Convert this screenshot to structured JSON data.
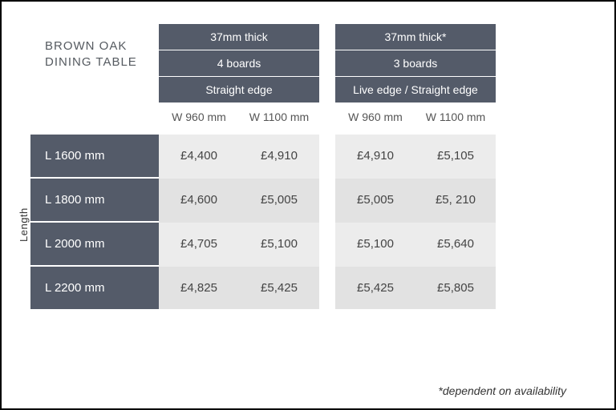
{
  "title_line1": "BROWN OAK",
  "title_line2": "DINING TABLE",
  "length_axis_label": "Length",
  "footnote": "*dependent on availability",
  "groups": [
    {
      "thickness": "37mm thick",
      "boards": "4 boards",
      "edge": "Straight edge",
      "widths": [
        "W 960 mm",
        "W 1100 mm"
      ]
    },
    {
      "thickness": "37mm thick*",
      "boards": "3 boards",
      "edge": "Live edge / Straight edge",
      "widths": [
        "W 960 mm",
        "W 1100 mm"
      ]
    }
  ],
  "rows": [
    {
      "length": "L 1600 mm",
      "prices": [
        "£4,400",
        "£4,910",
        "£4,910",
        "£5,105"
      ]
    },
    {
      "length": "L 1800 mm",
      "prices": [
        "£4,600",
        "£5,005",
        "£5,005",
        "£5, 210"
      ]
    },
    {
      "length": "L 2000 mm",
      "prices": [
        "£4,705",
        "£5,100",
        "£5,100",
        "£5,640"
      ]
    },
    {
      "length": "L 2200 mm",
      "prices": [
        "£4,825",
        "£5,425",
        "£5,425",
        "£5,805"
      ]
    }
  ],
  "colors": {
    "header_bg": "#545b69",
    "header_text": "#ffffff",
    "row_bg_a": "#ececec",
    "row_bg_b": "#e2e2e2",
    "title_text": "#555a60",
    "body_text": "#444444",
    "frame_border": "#000000"
  }
}
